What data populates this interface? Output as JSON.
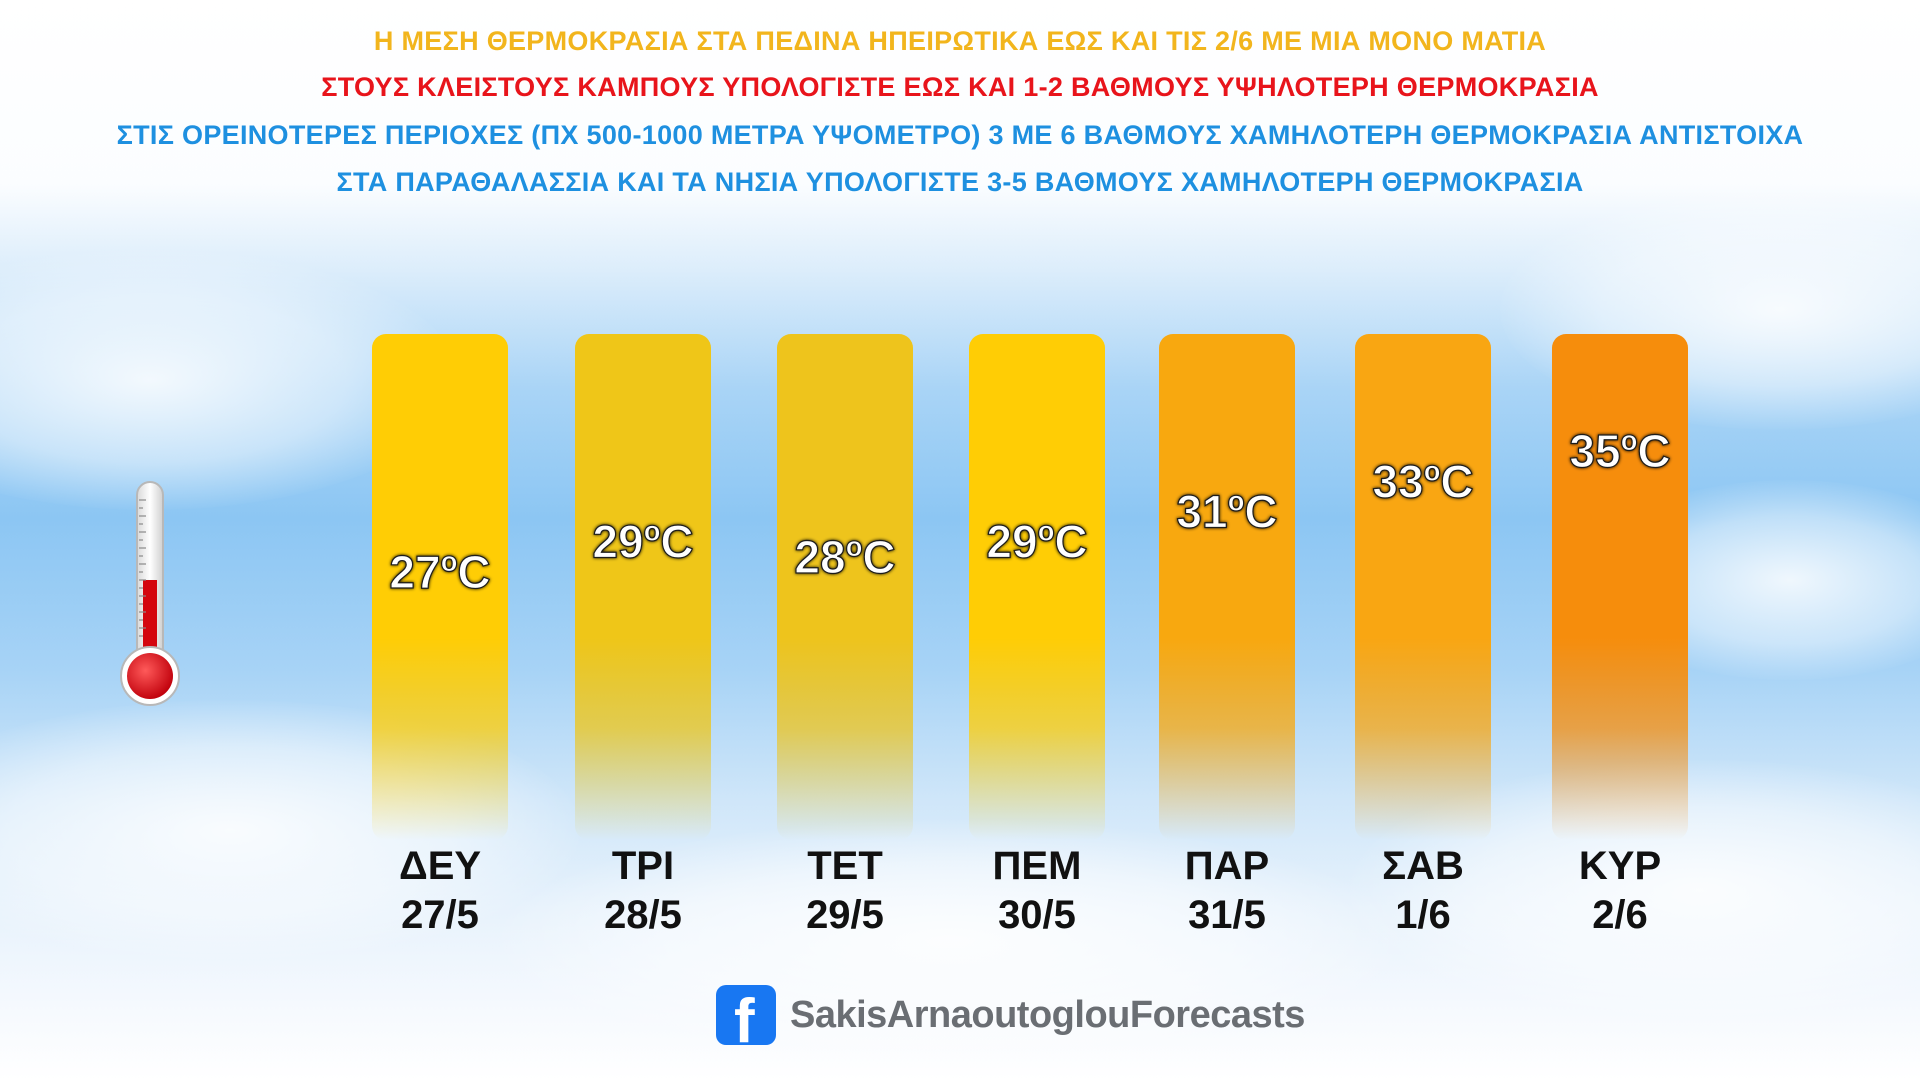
{
  "headlines": {
    "line1": "Η ΜΕΣΗ ΘΕΡΜΟΚΡΑΣΙΑ ΣΤΑ ΠΕΔΙΝΑ ΗΠΕΙΡΩΤΙΚΑ ΕΩΣ ΚΑΙ ΤΙΣ 2/6 ΜΕ ΜΙΑ ΜΟΝΟ ΜΑΤΙΑ",
    "line2": "ΣΤΟΥΣ ΚΛΕΙΣΤΟΥΣ ΚΑΜΠΟΥΣ ΥΠΟΛΟΓΙΣΤΕ ΕΩΣ ΚΑΙ 1-2 ΒΑΘΜΟΥΣ ΥΨΗΛΟΤΕΡΗ ΘΕΡΜΟΚΡΑΣΙΑ",
    "line3": "ΣΤΙΣ ΟΡΕΙΝΟΤΕΡΕΣ ΠΕΡΙΟΧΕΣ (ΠΧ 500-1000 ΜΕΤΡΑ ΥΨΟΜΕΤΡΟ) 3 ΜΕ 6 ΒΑΘΜΟΥΣ ΧΑΜΗΛΟΤΕΡΗ ΘΕΡΜΟΚΡΑΣΙΑ ΑΝΤΙΣΤΟΙΧΑ",
    "line4": "ΣΤΑ ΠΑΡΑΘΑΛΑΣΣΙΑ ΚΑΙ ΤΑ ΝΗΣΙΑ ΥΠΟΛΟΓΙΣΤΕ 3-5 ΒΑΘΜΟΥΣ ΧΑΜΗΛΟΤΕΡΗ ΘΕΡΜΟΚΡΑΣΙΑ",
    "color1": "#f2b51d",
    "color2": "#e8141b",
    "color3": "#1e90e0",
    "color4": "#1e90e0"
  },
  "chart_data": {
    "type": "bar",
    "categories": [
      "ΔΕΥ",
      "ΤΡΙ",
      "ΤΕΤ",
      "ΠΕΜ",
      "ΠΑΡ",
      "ΣΑΒ",
      "ΚΥΡ"
    ],
    "dates": [
      "27/5",
      "28/5",
      "29/5",
      "30/5",
      "31/5",
      "1/6",
      "2/6"
    ],
    "values": [
      27,
      29,
      28,
      29,
      31,
      33,
      35
    ],
    "value_labels": [
      "27ºC",
      "29ºC",
      "28ºC",
      "29ºC",
      "31ºC",
      "33ºC",
      "35ºC"
    ],
    "unit": "ºC",
    "colors": [
      "#ffcd05",
      "#efc618",
      "#eec41c",
      "#ffcd05",
      "#f8a80f",
      "#f9a612",
      "#f68d0c"
    ],
    "label_scale": [
      26,
      36
    ],
    "grid": false,
    "legend": "none"
  },
  "icons": {
    "thermometer": "thermometer-icon",
    "facebook": "facebook-icon"
  },
  "footer": {
    "fb_glyph": "f",
    "page_name": "SakisArnaoutoglouForecasts"
  }
}
